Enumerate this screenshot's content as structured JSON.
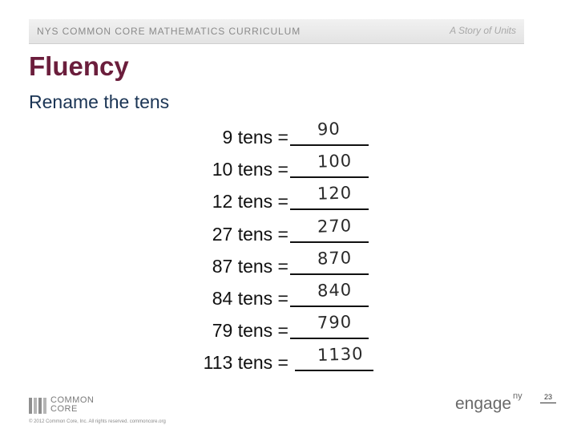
{
  "header": {
    "curriculum": "NYS COMMON CORE MATHEMATICS CURRICULUM",
    "series": "A Story of Units"
  },
  "title": "Fluency",
  "subtitle": "Rename the tens",
  "problems": [
    {
      "prompt": "9 tens =",
      "answer": "90"
    },
    {
      "prompt": "10 tens =",
      "answer": "100"
    },
    {
      "prompt": "12 tens =",
      "answer": "120"
    },
    {
      "prompt": "27 tens =",
      "answer": "270"
    },
    {
      "prompt": "87 tens =",
      "answer": "870"
    },
    {
      "prompt": "84 tens =",
      "answer": "840"
    },
    {
      "prompt": "79 tens =",
      "answer": "790"
    },
    {
      "prompt": "113 tens =",
      "answer": "1130"
    }
  ],
  "footer": {
    "logo_line1": "COMMON",
    "logo_line2": "CORE",
    "copyright": "© 2012 Common Core, Inc. All rights reserved. commoncore.org",
    "brand": "engage",
    "brand_suffix": "ny",
    "page_number": "23"
  },
  "colors": {
    "title": "#6b1e3c",
    "subtitle": "#1a3454",
    "header_bg": "#e8e8e8"
  }
}
